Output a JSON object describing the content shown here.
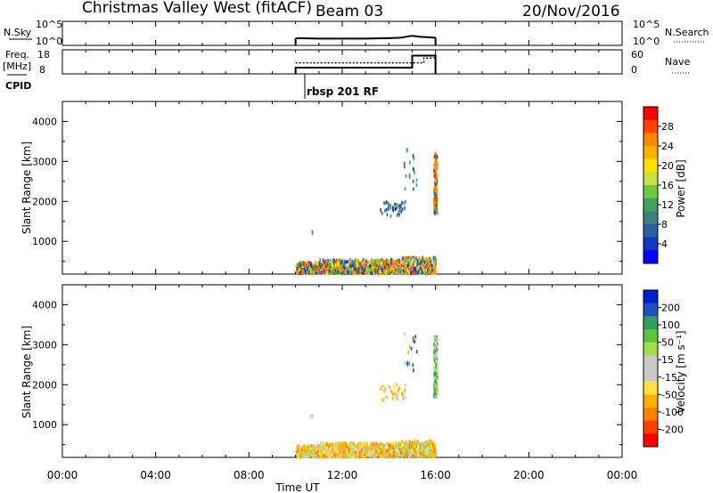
{
  "header": {
    "station": "Christmas Valley West (fitACF)",
    "beam": "Beam 03",
    "date": "20/Nov/2016"
  },
  "mode_label": "rbsp 201 RF",
  "chart_data": [
    {
      "type": "line",
      "panel": "nsky",
      "left_label": "N.Sky",
      "right_label": "N.Search",
      "left_ticks": [
        "10^5",
        "10^0"
      ],
      "right_ticks": [
        "10^5",
        "10^0"
      ],
      "series": [
        {
          "values_hours": [
            [
              10.0,
              1.5
            ],
            [
              11.0,
              1.4
            ],
            [
              12.0,
              1.4
            ],
            [
              13.0,
              1.4
            ],
            [
              14.0,
              1.5
            ],
            [
              14.5,
              1.6
            ],
            [
              15.0,
              2.0
            ],
            [
              15.3,
              1.8
            ],
            [
              16.0,
              1.6
            ]
          ]
        }
      ]
    },
    {
      "type": "line",
      "panel": "freq",
      "left_label_lines": [
        "Freq.",
        "[MHz]"
      ],
      "right_label": "Nave",
      "left_ticks": [
        "18",
        "8"
      ],
      "right_ticks": [
        "60",
        "0"
      ],
      "cpid_label": "CPID",
      "series": [
        {
          "style": "solid",
          "values_hours": [
            [
              10.0,
              10.6
            ],
            [
              15.0,
              10.6
            ],
            [
              15.0,
              15.6
            ],
            [
              16.0,
              15.6
            ]
          ]
        },
        {
          "style": "dotted",
          "values_hours": [
            [
              10.0,
              12.6
            ],
            [
              15.5,
              12.6
            ],
            [
              15.5,
              14.6
            ],
            [
              16.0,
              14.6
            ]
          ]
        }
      ]
    },
    {
      "type": "scatter",
      "panel": "power",
      "ylabel": "Slant Range [km]",
      "yticks": [
        1000,
        2000,
        3000,
        4000
      ],
      "ylim": [
        180,
        4500
      ],
      "colorbar": {
        "label": "Power [dB]",
        "ticks": [
          "28",
          "24",
          "20",
          "16",
          "12",
          "8",
          "4"
        ],
        "colors": [
          "#ff0000",
          "#ff4400",
          "#ff8800",
          "#ffb000",
          "#ffe000",
          "#c8e040",
          "#70c840",
          "#40a060",
          "#408080",
          "#305ca0",
          "#1038c0",
          "#0000ff"
        ]
      },
      "clusters": [
        {
          "t": [
            10.0,
            16.0
          ],
          "r": [
            200,
            600
          ],
          "density": 1200,
          "color_key": "mixed_power"
        },
        {
          "t": [
            13.6,
            14.7
          ],
          "r": [
            1600,
            2000
          ],
          "density": 40,
          "color_key": "blue"
        },
        {
          "t": [
            14.6,
            15.2
          ],
          "r": [
            2300,
            3300
          ],
          "density": 18,
          "color_key": "blue"
        },
        {
          "t": [
            15.9,
            16.05
          ],
          "r": [
            1700,
            3200
          ],
          "density": 160,
          "color_key": "orange_power"
        },
        {
          "t": [
            10.6,
            10.7
          ],
          "r": [
            1200,
            1250
          ],
          "density": 2,
          "color_key": "blue"
        }
      ]
    },
    {
      "type": "scatter",
      "panel": "velocity",
      "ylabel": "Slant Range [km]",
      "xlabel": "Time UT",
      "yticks": [
        1000,
        2000,
        3000,
        4000
      ],
      "ylim": [
        180,
        4500
      ],
      "xticks": [
        "00:00",
        "04:00",
        "08:00",
        "12:00",
        "16:00",
        "20:00",
        "00:00"
      ],
      "xlim_hours": [
        0,
        24
      ],
      "colorbar": {
        "label": "Velocity [m s⁻¹]",
        "ticks": [
          "200",
          "100",
          "50",
          "15",
          "-15",
          "-50",
          "-100",
          "-200"
        ],
        "colors": [
          "#0020d0",
          "#2050c0",
          "#30a060",
          "#60c040",
          "#a0e050",
          "#c8c8c8",
          "#c8c8c8",
          "#ffe040",
          "#ffb000",
          "#ff8000",
          "#ff4000",
          "#ff0000"
        ]
      },
      "clusters": [
        {
          "t": [
            10.0,
            16.0
          ],
          "r": [
            200,
            600
          ],
          "density": 1200,
          "color_key": "mixed_velocity"
        },
        {
          "t": [
            13.6,
            14.7
          ],
          "r": [
            1600,
            2000
          ],
          "density": 40,
          "color_key": "yellow"
        },
        {
          "t": [
            14.6,
            15.2
          ],
          "r": [
            2300,
            3300
          ],
          "density": 18,
          "color_key": "mixed_small"
        },
        {
          "t": [
            15.9,
            16.05
          ],
          "r": [
            1700,
            3200
          ],
          "density": 160,
          "color_key": "green"
        },
        {
          "t": [
            10.6,
            10.7
          ],
          "r": [
            1200,
            1250
          ],
          "density": 2,
          "color_key": "yellow"
        }
      ]
    }
  ]
}
